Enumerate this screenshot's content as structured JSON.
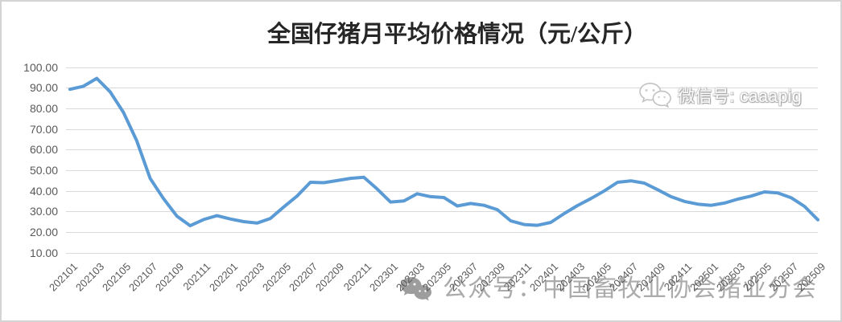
{
  "title": "全国仔猪月平均价格情况（元/公斤）",
  "watermarks": {
    "top": {
      "icon": "wechat-icon",
      "text": "微信号: caaapig"
    },
    "bottom": {
      "icon": "wechat-icon",
      "text": "公众号：中国畜牧业协会猪业分会"
    }
  },
  "colors": {
    "line": "#5B9BD5",
    "gridline": "#D9D9D9",
    "axis_text": "#595959",
    "title_text": "#262626",
    "border": "#D4D4D4",
    "watermark_text": "#ABABAB",
    "watermark_icon": "#9D9D9D",
    "watermark_outline": "#C2C2C2"
  },
  "chart_data": {
    "type": "line",
    "title": "全国仔猪月平均价格情况（元/公斤）",
    "unit": "元/公斤",
    "x": [
      "202101",
      "202102",
      "202103",
      "202104",
      "202105",
      "202106",
      "202107",
      "202108",
      "202109",
      "202110",
      "202111",
      "202112",
      "202201",
      "202202",
      "202203",
      "202204",
      "202205",
      "202206",
      "202207",
      "202208",
      "202209",
      "202210",
      "202211",
      "202212",
      "202301",
      "202302",
      "202303",
      "202304",
      "202305",
      "202306",
      "202307",
      "202308",
      "202309",
      "202310",
      "202311",
      "202312",
      "202401",
      "202402",
      "202403",
      "202404",
      "202405",
      "202406",
      "202407",
      "202408",
      "202409",
      "202410",
      "202411",
      "202412",
      "202501",
      "202502",
      "202503",
      "202504",
      "202505",
      "202506",
      "202507",
      "202508",
      "202509"
    ],
    "values": [
      89.2,
      90.7,
      94.5,
      88.0,
      78.0,
      64.2,
      46.0,
      36.2,
      27.7,
      23.0,
      26.0,
      27.9,
      26.3,
      25.0,
      24.3,
      26.5,
      32.1,
      37.4,
      44.1,
      43.9,
      44.9,
      46.0,
      46.5,
      40.8,
      34.5,
      35.0,
      38.5,
      37.1,
      36.7,
      32.6,
      33.8,
      32.9,
      30.8,
      25.4,
      23.6,
      23.2,
      24.6,
      28.9,
      32.8,
      36.2,
      39.9,
      44.1,
      44.8,
      43.7,
      40.5,
      37.1,
      34.8,
      33.5,
      32.9,
      34.0,
      35.9,
      37.4,
      39.4,
      38.9,
      36.6,
      32.4,
      25.9
    ],
    "x_tick_labels": [
      "202101",
      "202103",
      "202105",
      "202107",
      "202109",
      "202111",
      "202201",
      "202203",
      "202205",
      "202207",
      "202209",
      "202211",
      "202301",
      "202303",
      "202305",
      "202307",
      "202309",
      "202311",
      "202401",
      "202403",
      "202405",
      "202407",
      "202409",
      "202411",
      "202501",
      "202503",
      "202505",
      "202507",
      "202509"
    ],
    "y_ticks": [
      100,
      90,
      80,
      70,
      60,
      50,
      40,
      30,
      20,
      10
    ],
    "y_tick_labels": [
      "100.00",
      "90.00",
      "80.00",
      "70.00",
      "60.00",
      "50.00",
      "40.00",
      "30.00",
      "20.00",
      "10.00"
    ],
    "ylim": [
      10,
      100
    ],
    "grid": true,
    "legend_position": "none"
  }
}
